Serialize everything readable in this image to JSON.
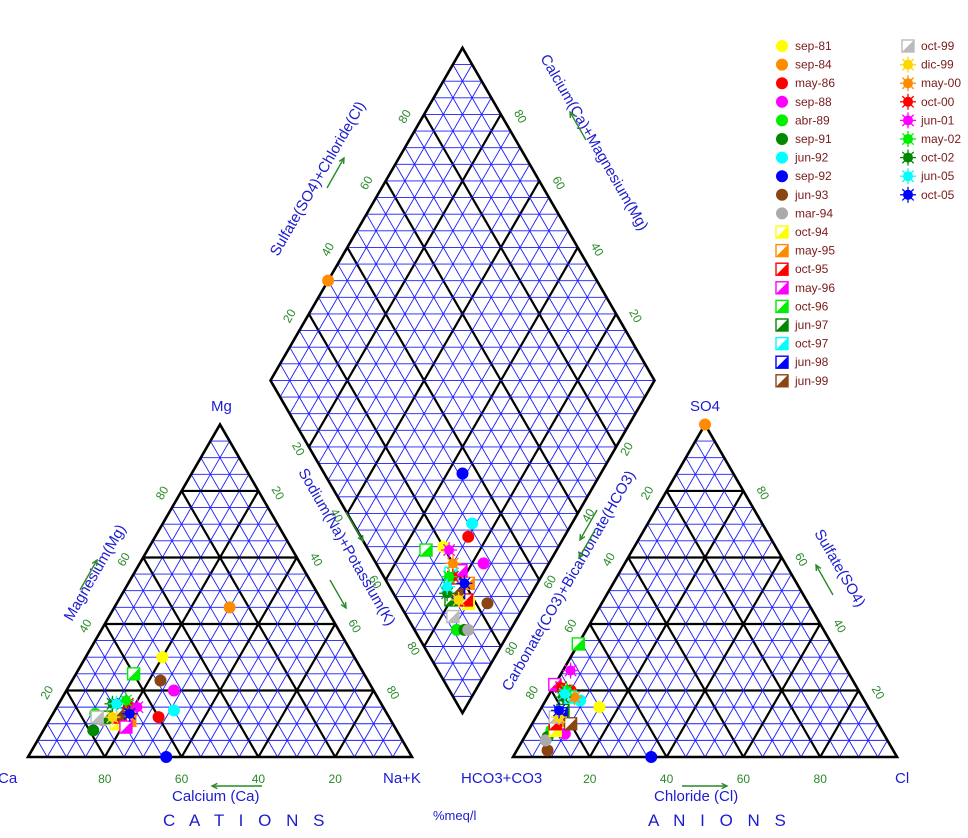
{
  "chart_data": {
    "type": "scatter",
    "subtype": "piper-diagram",
    "units_label": "%meq/l",
    "cation_triangle": {
      "title": "C A T I O N S",
      "vertex_labels": [
        "Ca",
        "Mg",
        "Na+K"
      ],
      "axis_labels": [
        "Calcium (Ca)",
        "Magnesium(Mg)",
        "Sodium(Na)+Potassium(K)"
      ],
      "ticks": [
        "20",
        "40",
        "60",
        "80"
      ]
    },
    "anion_triangle": {
      "title": "A N I O N S",
      "vertex_labels": [
        "HCO3+CO3",
        "SO4",
        "Cl"
      ],
      "axis_labels": [
        "Chloride (Cl)",
        "Sulfate(SO4)",
        "Carbonate(CO3)+Bicarbonate(HCO3)"
      ],
      "ticks": [
        "20",
        "40",
        "60",
        "80"
      ]
    },
    "diamond": {
      "axis_labels": [
        "Sulfate(SO4)+Chloride(Cl)",
        "Calcium(Ca)+Magnesium(Mg)"
      ],
      "ticks": [
        "20",
        "40",
        "60",
        "80"
      ]
    },
    "grid": true,
    "legend_position": "top-right",
    "series": [
      {
        "name": "sep-81",
        "color": "#ffff00",
        "marker": "circle",
        "cations": {
          "ca": 50,
          "mg": 30,
          "nak": 20
        },
        "anions": {
          "hco3": 70,
          "so4": 15,
          "cl": 15
        }
      },
      {
        "name": "sep-84",
        "color": "#ff8c00",
        "marker": "circle",
        "cations": {
          "ca": 25,
          "mg": 45,
          "nak": 30
        },
        "anions": {
          "hco3": 0,
          "so4": 100,
          "cl": 0
        }
      },
      {
        "name": "may-86",
        "color": "#ff0000",
        "marker": "circle",
        "cations": {
          "ca": 60,
          "mg": 12,
          "nak": 28
        },
        "anions": {
          "hco3": 75,
          "so4": 20,
          "cl": 5
        }
      },
      {
        "name": "sep-88",
        "color": "#ff00ff",
        "marker": "circle",
        "cations": {
          "ca": 52,
          "mg": 20,
          "nak": 28
        },
        "anions": {
          "hco3": 83,
          "so4": 7,
          "cl": 10
        }
      },
      {
        "name": "abr-89",
        "color": "#00ee00",
        "marker": "circle",
        "cations": {
          "ca": 76,
          "mg": 13,
          "nak": 11
        },
        "anions": {
          "hco3": 86,
          "so4": 8,
          "cl": 6
        }
      },
      {
        "name": "sep-91",
        "color": "#008800",
        "marker": "circle",
        "cations": {
          "ca": 79,
          "mg": 8,
          "nak": 13
        },
        "anions": {
          "hco3": 88,
          "so4": 6,
          "cl": 6
        }
      },
      {
        "name": "jun-92",
        "color": "#00ffff",
        "marker": "circle",
        "cations": {
          "ca": 55,
          "mg": 14,
          "nak": 31
        },
        "anions": {
          "hco3": 74,
          "so4": 17,
          "cl": 9
        }
      },
      {
        "name": "sep-92",
        "color": "#0000ff",
        "marker": "circle",
        "cations": {
          "ca": 64,
          "mg": 0,
          "nak": 36
        },
        "anions": {
          "hco3": 64,
          "so4": 0,
          "cl": 36
        }
      },
      {
        "name": "jun-93",
        "color": "#8b4513",
        "marker": "circle",
        "cations": {
          "ca": 54,
          "mg": 23,
          "nak": 23
        },
        "anions": {
          "hco3": 90,
          "so4": 2,
          "cl": 8
        }
      },
      {
        "name": "mar-94",
        "color": "#aaaaaa",
        "marker": "circle",
        "cations": {
          "ca": 75,
          "mg": 11,
          "nak": 14
        },
        "anions": {
          "hco3": 89,
          "so4": 5,
          "cl": 6
        }
      },
      {
        "name": "oct-94",
        "color": "#ffff00",
        "marker": "square",
        "cations": {
          "ca": 72,
          "mg": 10,
          "nak": 18
        },
        "anions": {
          "hco3": 85,
          "so4": 8,
          "cl": 7
        }
      },
      {
        "name": "may-95",
        "color": "#ff8c00",
        "marker": "square",
        "cations": {
          "ca": 68,
          "mg": 11,
          "nak": 21
        },
        "anions": {
          "hco3": 82,
          "so4": 11,
          "cl": 7
        }
      },
      {
        "name": "oct-95",
        "color": "#ff0000",
        "marker": "square",
        "cations": {
          "ca": 70,
          "mg": 12,
          "nak": 18
        },
        "anions": {
          "hco3": 84,
          "so4": 10,
          "cl": 6
        }
      },
      {
        "name": "may-96",
        "color": "#ff00ff",
        "marker": "square",
        "cations": {
          "ca": 70,
          "mg": 9,
          "nak": 21
        },
        "anions": {
          "hco3": 79,
          "so4": 22,
          "cl": 0
        }
      },
      {
        "name": "oct-96",
        "color": "#00ee00",
        "marker": "square",
        "cations": {
          "ca": 60,
          "mg": 25,
          "nak": 15
        },
        "anions": {
          "hco3": 66,
          "so4": 34,
          "cl": 0
        }
      },
      {
        "name": "jun-97",
        "color": "#008800",
        "marker": "square",
        "cations": {
          "ca": 74,
          "mg": 12,
          "nak": 14
        },
        "anions": {
          "hco3": 80,
          "so4": 14,
          "cl": 6
        }
      },
      {
        "name": "oct-97",
        "color": "#00ffff",
        "marker": "square",
        "cations": {
          "ca": 68,
          "mg": 14,
          "nak": 18
        },
        "anions": {
          "hco3": 76,
          "so4": 18,
          "cl": 6
        }
      },
      {
        "name": "jun-98",
        "color": "#0000ff",
        "marker": "square",
        "cations": {
          "ca": 68,
          "mg": 15,
          "nak": 17
        },
        "anions": {
          "hco3": 81,
          "so4": 13,
          "cl": 6
        }
      },
      {
        "name": "jun-99",
        "color": "#8b4513",
        "marker": "square",
        "cations": {
          "ca": 70,
          "mg": 13,
          "nak": 17
        },
        "anions": {
          "hco3": 80,
          "so4": 10,
          "cl": 10
        }
      },
      {
        "name": "oct-99",
        "color": "#bbbbbb",
        "marker": "square",
        "cations": {
          "ca": 76,
          "mg": 12,
          "nak": 12
        },
        "anions": {
          "hco3": 83,
          "so4": 12,
          "cl": 5
        }
      },
      {
        "name": "dic-99",
        "color": "#ffd700",
        "marker": "star",
        "cations": {
          "ca": 72,
          "mg": 12,
          "nak": 16
        },
        "anions": {
          "hco3": 82,
          "so4": 12,
          "cl": 6
        }
      },
      {
        "name": "may-00",
        "color": "#ff8c00",
        "marker": "star",
        "cations": {
          "ca": 66,
          "mg": 14,
          "nak": 20
        },
        "anions": {
          "hco3": 75,
          "so4": 18,
          "cl": 7
        }
      },
      {
        "name": "oct-00",
        "color": "#ff0000",
        "marker": "star",
        "cations": {
          "ca": 66,
          "mg": 16,
          "nak": 18
        },
        "anions": {
          "hco3": 77,
          "so4": 21,
          "cl": 2
        }
      },
      {
        "name": "jun-01",
        "color": "#ff00ff",
        "marker": "star",
        "cations": {
          "ca": 64,
          "mg": 15,
          "nak": 21
        },
        "anions": {
          "hco3": 72,
          "so4": 26,
          "cl": 2
        }
      },
      {
        "name": "may-02",
        "color": "#00ee00",
        "marker": "star",
        "cations": {
          "ca": 66,
          "mg": 17,
          "nak": 17
        },
        "anions": {
          "hco3": 76,
          "so4": 20,
          "cl": 4
        }
      },
      {
        "name": "oct-02",
        "color": "#008800",
        "marker": "star",
        "cations": {
          "ca": 70,
          "mg": 16,
          "nak": 14
        },
        "anions": {
          "hco3": 78,
          "so4": 18,
          "cl": 4
        }
      },
      {
        "name": "jun-05",
        "color": "#00ffff",
        "marker": "star",
        "cations": {
          "ca": 69,
          "mg": 16,
          "nak": 15
        },
        "anions": {
          "hco3": 77,
          "so4": 19,
          "cl": 4
        }
      },
      {
        "name": "oct-05",
        "color": "#0000ff",
        "marker": "star",
        "cations": {
          "ca": 67,
          "mg": 13,
          "nak": 20
        },
        "anions": {
          "hco3": 81,
          "so4": 14,
          "cl": 5
        }
      }
    ]
  }
}
